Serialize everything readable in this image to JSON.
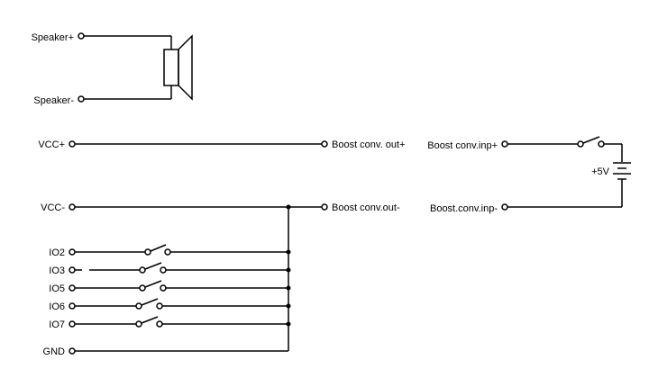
{
  "labels": {
    "speaker_plus": "Speaker+",
    "speaker_minus": "Speaker-",
    "vcc_plus": "VCC+",
    "boost_out_plus": "Boost conv. out+",
    "boost_inp_plus": "Boost conv.inp+",
    "battery": "+5V",
    "vcc_minus": "VCC-",
    "boost_out_minus": "Boost conv.out-",
    "boost_inp_minus": "Boost.conv.inp-",
    "io2": "IO2",
    "io3": "IO3",
    "io5": "IO5",
    "io6": "IO6",
    "io7": "IO7",
    "gnd": "GND"
  },
  "colors": {
    "line": "#000000",
    "background": "#ffffff"
  }
}
